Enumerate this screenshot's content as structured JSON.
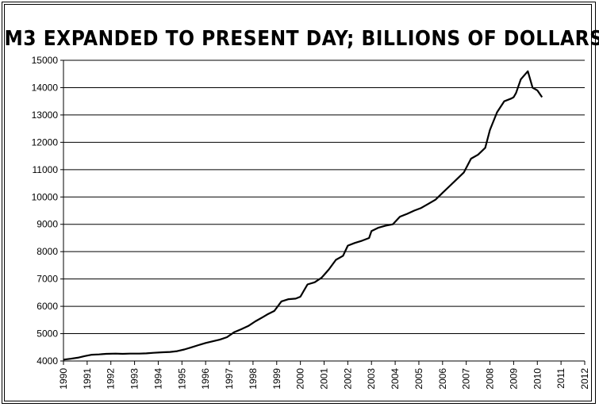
{
  "chart_data": {
    "type": "line",
    "title": "M3 EXPANDED TO PRESENT DAY; BILLIONS OF DOLLARS",
    "xlabel": "",
    "ylabel": "",
    "ylim": [
      4000,
      15000
    ],
    "xlim": [
      1990,
      2012
    ],
    "y_ticks": [
      "4000",
      "5000",
      "6000",
      "7000",
      "8000",
      "9000",
      "10000",
      "11000",
      "12000",
      "13000",
      "14000",
      "15000"
    ],
    "x_ticks": [
      "1990",
      "1991",
      "1992",
      "1993",
      "1994",
      "1995",
      "1996",
      "1997",
      "1998",
      "1999",
      "2000",
      "2001",
      "2002",
      "2003",
      "2004",
      "2005",
      "2006",
      "2007",
      "2008",
      "2009",
      "2010",
      "2011",
      "2012"
    ],
    "grid": "horizontal",
    "legend": "none",
    "line_color": "#000000",
    "series": [
      {
        "x": [
          1990.0,
          1990.3,
          1990.6,
          1990.9,
          1991.2,
          1991.5,
          1991.8,
          1992.2,
          1992.5,
          1992.8,
          1993.2,
          1993.5,
          1993.8,
          1994.2,
          1994.5,
          1994.8,
          1995.1,
          1995.4,
          1995.7,
          1996.0,
          1996.3,
          1996.6,
          1996.9,
          1997.2,
          1997.5,
          1997.8,
          1998.1,
          1998.4,
          1998.6,
          1998.9,
          1999.2,
          1999.5,
          1999.8,
          2000.0,
          2000.3,
          2000.6,
          2000.9,
          2001.2,
          2001.5,
          2001.8,
          2002.0,
          2002.3,
          2002.6,
          2002.9,
          2003.0,
          2003.3,
          2003.6,
          2003.9,
          2004.2,
          2004.5,
          2004.8,
          2005.1,
          2005.4,
          2005.7,
          2006.0,
          2006.3,
          2006.6,
          2006.9,
          2007.2,
          2007.5,
          2007.8,
          2008.0,
          2008.3,
          2008.6,
          2008.9,
          2009.0,
          2009.1,
          2009.3,
          2009.45,
          2009.6,
          2009.8,
          2010.0,
          2010.2
        ],
        "values": [
          4050,
          4080,
          4120,
          4180,
          4230,
          4240,
          4260,
          4270,
          4260,
          4270,
          4270,
          4280,
          4300,
          4320,
          4330,
          4360,
          4420,
          4500,
          4580,
          4660,
          4720,
          4780,
          4870,
          5050,
          5160,
          5280,
          5450,
          5600,
          5700,
          5830,
          6180,
          6260,
          6280,
          6350,
          6800,
          6880,
          7050,
          7350,
          7700,
          7850,
          8220,
          8320,
          8400,
          8500,
          8750,
          8880,
          8950,
          9000,
          9280,
          9380,
          9500,
          9600,
          9750,
          9900,
          10150,
          10400,
          10650,
          10900,
          11400,
          11550,
          11800,
          12450,
          13100,
          13500,
          13600,
          13650,
          13800,
          14300,
          14450,
          14600,
          14000,
          13900,
          13650
        ]
      }
    ]
  }
}
